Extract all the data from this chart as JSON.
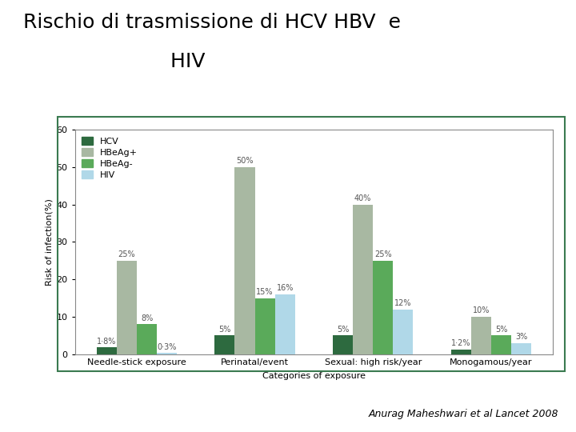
{
  "title_line1": "Rischio di trasmissione di HCV HBV  e",
  "title_line2": "                       HIV",
  "categories": [
    "Needle-stick exposure",
    "Perinatal/event",
    "Sexual: high risk/year",
    "Monogamous/year"
  ],
  "series": {
    "HCV": [
      1.8,
      5,
      5,
      1.2
    ],
    "HBeAg+": [
      25,
      50,
      40,
      10
    ],
    "HBeAg-": [
      8,
      15,
      25,
      5
    ],
    "HIV": [
      0.3,
      16,
      12,
      3
    ]
  },
  "labels": {
    "HCV": [
      "1·8%",
      "5%",
      "5%",
      "1·2%"
    ],
    "HBeAg+": [
      "25%",
      "50%",
      "40%",
      "10%"
    ],
    "HBeAg-": [
      "8%",
      "15%",
      "25%",
      "5%"
    ],
    "HIV": [
      "0·3%",
      "16%",
      "12%",
      "3%"
    ]
  },
  "colors": {
    "HCV": "#2d6a3f",
    "HBeAg+": "#a8b8a2",
    "HBeAg-": "#5aaa5a",
    "HIV": "#b0d8e8"
  },
  "ylabel": "Risk of infection(%)",
  "xlabel": "Categories of exposure",
  "ylim": [
    0,
    60
  ],
  "yticks": [
    0,
    10,
    20,
    30,
    40,
    50,
    60
  ],
  "background_color": "#ffffff",
  "box_color": "#3a7a50",
  "title_fontsize": 18,
  "axis_fontsize": 8,
  "label_fontsize": 7,
  "legend_fontsize": 8,
  "citation": "Anurag Maheshwari et al Lancet 2008"
}
